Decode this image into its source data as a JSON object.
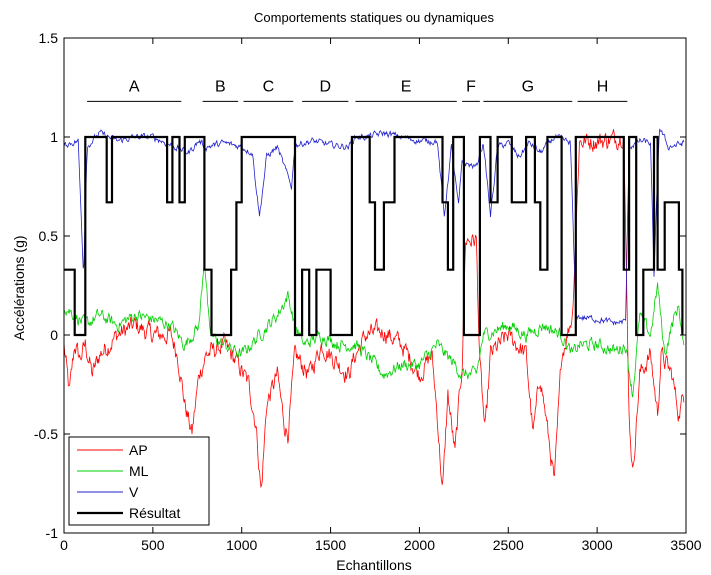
{
  "chart_data": {
    "type": "line",
    "title": "Comportements statiques ou dynamiques",
    "xlabel": "Echantillons",
    "ylabel": "Accélérations (g)",
    "xlim": [
      0,
      3500
    ],
    "ylim": [
      -1,
      1.5
    ],
    "xticks": [
      0,
      500,
      1000,
      1500,
      2000,
      2500,
      3000,
      3500
    ],
    "xtick_labels": [
      "0",
      "500",
      "1000",
      "1500",
      "2000",
      "2500",
      "3000",
      "3500"
    ],
    "yticks": [
      -1,
      -0.5,
      0,
      0.5,
      1,
      1.5
    ],
    "ytick_labels": [
      "-1",
      "-0.5",
      "0",
      "0.5",
      "1",
      "1.5"
    ],
    "grid": false,
    "legend_position": "bottom-left",
    "segments": [
      {
        "label": "A",
        "x_start": 130,
        "x_end": 660
      },
      {
        "label": "B",
        "x_start": 780,
        "x_end": 980
      },
      {
        "label": "C",
        "x_start": 1010,
        "x_end": 1290
      },
      {
        "label": "D",
        "x_start": 1340,
        "x_end": 1600
      },
      {
        "label": "E",
        "x_start": 1640,
        "x_end": 2210
      },
      {
        "label": "F",
        "x_start": 2240,
        "x_end": 2340
      },
      {
        "label": "G",
        "x_start": 2360,
        "x_end": 2860
      },
      {
        "label": "H",
        "x_start": 2890,
        "x_end": 3170
      }
    ],
    "series": [
      {
        "name": "AP",
        "color": "#ff0000",
        "width": 0.8,
        "noise": 0.09,
        "points": [
          [
            0,
            -0.05
          ],
          [
            30,
            -0.3
          ],
          [
            60,
            -0.05
          ],
          [
            90,
            -0.12
          ],
          [
            120,
            -0.05
          ],
          [
            160,
            -0.2
          ],
          [
            200,
            -0.1
          ],
          [
            300,
            0.0
          ],
          [
            400,
            0.05
          ],
          [
            500,
            0.0
          ],
          [
            600,
            0.0
          ],
          [
            640,
            -0.1
          ],
          [
            680,
            -0.35
          ],
          [
            720,
            -0.5
          ],
          [
            760,
            -0.2
          ],
          [
            800,
            -0.1
          ],
          [
            900,
            -0.05
          ],
          [
            980,
            -0.15
          ],
          [
            1040,
            -0.25
          ],
          [
            1080,
            -0.45
          ],
          [
            1110,
            -0.8
          ],
          [
            1140,
            -0.35
          ],
          [
            1200,
            -0.2
          ],
          [
            1240,
            -0.45
          ],
          [
            1260,
            -0.5
          ],
          [
            1300,
            -0.1
          ],
          [
            1380,
            -0.2
          ],
          [
            1450,
            -0.05
          ],
          [
            1550,
            -0.15
          ],
          [
            1600,
            -0.2
          ],
          [
            1640,
            -0.1
          ],
          [
            1700,
            0.0
          ],
          [
            1800,
            0.02
          ],
          [
            1900,
            -0.05
          ],
          [
            2000,
            -0.2
          ],
          [
            2070,
            -0.1
          ],
          [
            2100,
            -0.4
          ],
          [
            2130,
            -0.8
          ],
          [
            2160,
            -0.3
          ],
          [
            2200,
            -0.6
          ],
          [
            2240,
            -0.15
          ],
          [
            2260,
            0.48
          ],
          [
            2320,
            0.48
          ],
          [
            2340,
            -0.15
          ],
          [
            2370,
            -0.5
          ],
          [
            2400,
            -0.1
          ],
          [
            2500,
            0.0
          ],
          [
            2600,
            -0.1
          ],
          [
            2640,
            -0.5
          ],
          [
            2680,
            -0.2
          ],
          [
            2760,
            -0.75
          ],
          [
            2800,
            -0.1
          ],
          [
            2860,
            0.1
          ],
          [
            2880,
            0.5
          ],
          [
            2900,
            0.98
          ],
          [
            2950,
            0.98
          ],
          [
            3000,
            0.98
          ],
          [
            3100,
            0.99
          ],
          [
            3150,
            1.02
          ],
          [
            3160,
            0.5
          ],
          [
            3180,
            -0.4
          ],
          [
            3200,
            -0.7
          ],
          [
            3240,
            -0.2
          ],
          [
            3300,
            -0.1
          ],
          [
            3340,
            -0.4
          ],
          [
            3360,
            -0.1
          ],
          [
            3420,
            -0.2
          ],
          [
            3460,
            -0.4
          ],
          [
            3490,
            -0.3
          ]
        ]
      },
      {
        "name": "ML",
        "color": "#00d000",
        "width": 0.8,
        "noise": 0.06,
        "points": [
          [
            0,
            0.15
          ],
          [
            60,
            0.1
          ],
          [
            120,
            0.05
          ],
          [
            200,
            0.1
          ],
          [
            300,
            0.05
          ],
          [
            400,
            0.1
          ],
          [
            500,
            0.08
          ],
          [
            600,
            0.05
          ],
          [
            680,
            -0.05
          ],
          [
            760,
            0.05
          ],
          [
            790,
            0.4
          ],
          [
            820,
            0.0
          ],
          [
            900,
            -0.05
          ],
          [
            1000,
            -0.1
          ],
          [
            1100,
            0.0
          ],
          [
            1200,
            0.1
          ],
          [
            1260,
            0.2
          ],
          [
            1300,
            0.05
          ],
          [
            1350,
            -0.05
          ],
          [
            1450,
            0.0
          ],
          [
            1550,
            -0.05
          ],
          [
            1640,
            -0.05
          ],
          [
            1700,
            -0.1
          ],
          [
            1800,
            -0.2
          ],
          [
            1900,
            -0.15
          ],
          [
            2000,
            -0.15
          ],
          [
            2100,
            -0.05
          ],
          [
            2200,
            -0.15
          ],
          [
            2240,
            -0.2
          ],
          [
            2320,
            -0.2
          ],
          [
            2360,
            0.0
          ],
          [
            2500,
            0.05
          ],
          [
            2600,
            0.0
          ],
          [
            2700,
            0.05
          ],
          [
            2800,
            0.0
          ],
          [
            2860,
            -0.1
          ],
          [
            2900,
            -0.05
          ],
          [
            3000,
            -0.05
          ],
          [
            3100,
            -0.08
          ],
          [
            3160,
            -0.05
          ],
          [
            3200,
            -0.3
          ],
          [
            3240,
            0.1
          ],
          [
            3300,
            0.0
          ],
          [
            3340,
            0.25
          ],
          [
            3380,
            -0.1
          ],
          [
            3420,
            0.05
          ],
          [
            3460,
            0.15
          ],
          [
            3490,
            -0.1
          ]
        ]
      },
      {
        "name": "V",
        "color": "#2222cc",
        "width": 0.8,
        "noise": 0.03,
        "points": [
          [
            0,
            0.96
          ],
          [
            80,
            0.98
          ],
          [
            110,
            0.3
          ],
          [
            130,
            0.95
          ],
          [
            200,
            1.02
          ],
          [
            300,
            0.98
          ],
          [
            400,
            1.0
          ],
          [
            500,
            1.0
          ],
          [
            600,
            0.96
          ],
          [
            700,
            0.92
          ],
          [
            760,
            0.98
          ],
          [
            800,
            0.95
          ],
          [
            900,
            0.97
          ],
          [
            1000,
            0.95
          ],
          [
            1060,
            0.92
          ],
          [
            1100,
            0.6
          ],
          [
            1140,
            0.9
          ],
          [
            1200,
            0.95
          ],
          [
            1280,
            0.75
          ],
          [
            1300,
            0.96
          ],
          [
            1400,
            0.98
          ],
          [
            1500,
            0.96
          ],
          [
            1600,
            0.95
          ],
          [
            1640,
            1.0
          ],
          [
            1700,
            1.0
          ],
          [
            1800,
            1.02
          ],
          [
            1900,
            1.0
          ],
          [
            2000,
            0.98
          ],
          [
            2100,
            0.98
          ],
          [
            2140,
            0.6
          ],
          [
            2180,
            0.95
          ],
          [
            2220,
            0.65
          ],
          [
            2240,
            0.87
          ],
          [
            2320,
            0.85
          ],
          [
            2360,
            0.97
          ],
          [
            2400,
            0.6
          ],
          [
            2440,
            0.95
          ],
          [
            2500,
            0.97
          ],
          [
            2560,
            0.9
          ],
          [
            2620,
            0.97
          ],
          [
            2680,
            0.92
          ],
          [
            2760,
            1.0
          ],
          [
            2850,
            0.97
          ],
          [
            2880,
            0.1
          ],
          [
            2900,
            0.09
          ],
          [
            3000,
            0.08
          ],
          [
            3100,
            0.06
          ],
          [
            3160,
            0.07
          ],
          [
            3180,
            0.95
          ],
          [
            3240,
            0.98
          ],
          [
            3300,
            0.97
          ],
          [
            3320,
            0.3
          ],
          [
            3350,
            1.05
          ],
          [
            3400,
            0.95
          ],
          [
            3490,
            0.97
          ]
        ]
      },
      {
        "name": "Résultat",
        "color": "#000000",
        "width": 2.2,
        "noise": 0,
        "points": [
          [
            0,
            0.33
          ],
          [
            60,
            0.33
          ],
          [
            60,
            0
          ],
          [
            120,
            0
          ],
          [
            120,
            1
          ],
          [
            240,
            1
          ],
          [
            240,
            0.67
          ],
          [
            270,
            0.67
          ],
          [
            270,
            1
          ],
          [
            580,
            1
          ],
          [
            580,
            0.67
          ],
          [
            610,
            0.67
          ],
          [
            610,
            1
          ],
          [
            650,
            1
          ],
          [
            650,
            0.67
          ],
          [
            680,
            0.67
          ],
          [
            680,
            1
          ],
          [
            790,
            1
          ],
          [
            790,
            0.33
          ],
          [
            830,
            0.33
          ],
          [
            830,
            0
          ],
          [
            940,
            0
          ],
          [
            940,
            0.33
          ],
          [
            970,
            0.33
          ],
          [
            970,
            0.67
          ],
          [
            1000,
            0.67
          ],
          [
            1000,
            1
          ],
          [
            1300,
            1
          ],
          [
            1300,
            0
          ],
          [
            1340,
            0
          ],
          [
            1340,
            0.33
          ],
          [
            1380,
            0.33
          ],
          [
            1380,
            0
          ],
          [
            1420,
            0
          ],
          [
            1420,
            0.33
          ],
          [
            1500,
            0.33
          ],
          [
            1500,
            0
          ],
          [
            1620,
            0
          ],
          [
            1620,
            1
          ],
          [
            1720,
            1
          ],
          [
            1720,
            0.67
          ],
          [
            1750,
            0.67
          ],
          [
            1750,
            0.33
          ],
          [
            1800,
            0.33
          ],
          [
            1800,
            0.67
          ],
          [
            1860,
            0.67
          ],
          [
            1860,
            1
          ],
          [
            2130,
            1
          ],
          [
            2130,
            0.67
          ],
          [
            2160,
            0.67
          ],
          [
            2160,
            0.33
          ],
          [
            2190,
            0.33
          ],
          [
            2190,
            1
          ],
          [
            2250,
            1
          ],
          [
            2250,
            0
          ],
          [
            2340,
            0
          ],
          [
            2340,
            1
          ],
          [
            2400,
            1
          ],
          [
            2400,
            0.67
          ],
          [
            2440,
            0.67
          ],
          [
            2440,
            1
          ],
          [
            2520,
            1
          ],
          [
            2520,
            0.67
          ],
          [
            2600,
            0.67
          ],
          [
            2600,
            1
          ],
          [
            2650,
            1
          ],
          [
            2650,
            0.67
          ],
          [
            2680,
            0.67
          ],
          [
            2680,
            0.33
          ],
          [
            2720,
            0.33
          ],
          [
            2720,
            1
          ],
          [
            2800,
            1
          ],
          [
            2800,
            0
          ],
          [
            2880,
            0
          ],
          [
            2880,
            1
          ],
          [
            3020,
            1
          ],
          [
            3020,
            1
          ],
          [
            3150,
            1
          ],
          [
            3150,
            0.33
          ],
          [
            3180,
            0.33
          ],
          [
            3180,
            1
          ],
          [
            3220,
            1
          ],
          [
            3220,
            0
          ],
          [
            3260,
            0
          ],
          [
            3260,
            0.33
          ],
          [
            3320,
            0.33
          ],
          [
            3320,
            1
          ],
          [
            3340,
            1
          ],
          [
            3340,
            0.33
          ],
          [
            3380,
            0.33
          ],
          [
            3380,
            0.67
          ],
          [
            3460,
            0.67
          ],
          [
            3460,
            0.33
          ],
          [
            3480,
            0.33
          ],
          [
            3480,
            0
          ]
        ]
      }
    ]
  }
}
